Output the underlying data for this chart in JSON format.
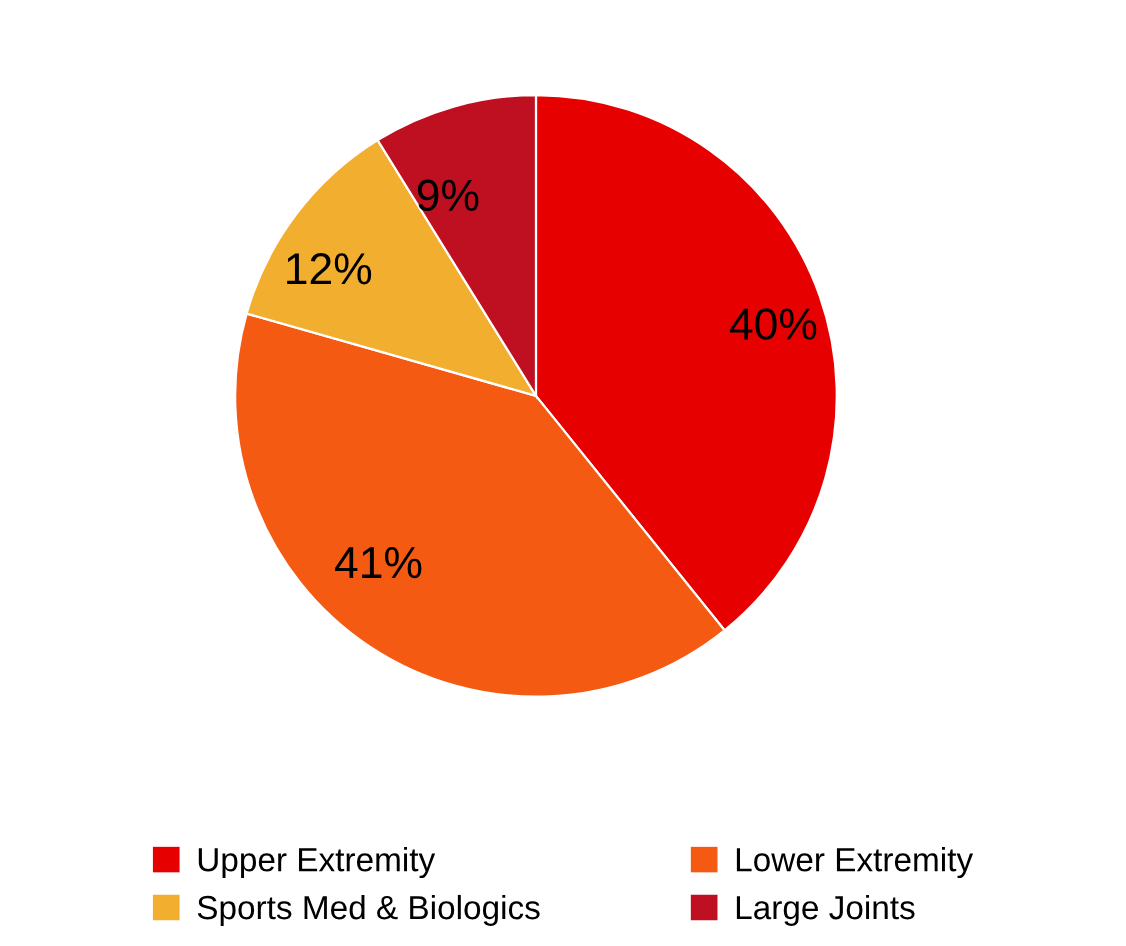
{
  "chart_data": {
    "type": "pie",
    "categories": [
      "Upper Extremity",
      "Lower Extremity",
      "Sports Med & Biologics",
      "Large Joints"
    ],
    "values": [
      40,
      41,
      12,
      9
    ],
    "colors": [
      "#e60000",
      "#f55a12",
      "#f2ae2e",
      "#be1020"
    ],
    "value_labels": [
      "40%",
      "41%",
      "12%",
      "9%"
    ],
    "legend": "bottom"
  }
}
